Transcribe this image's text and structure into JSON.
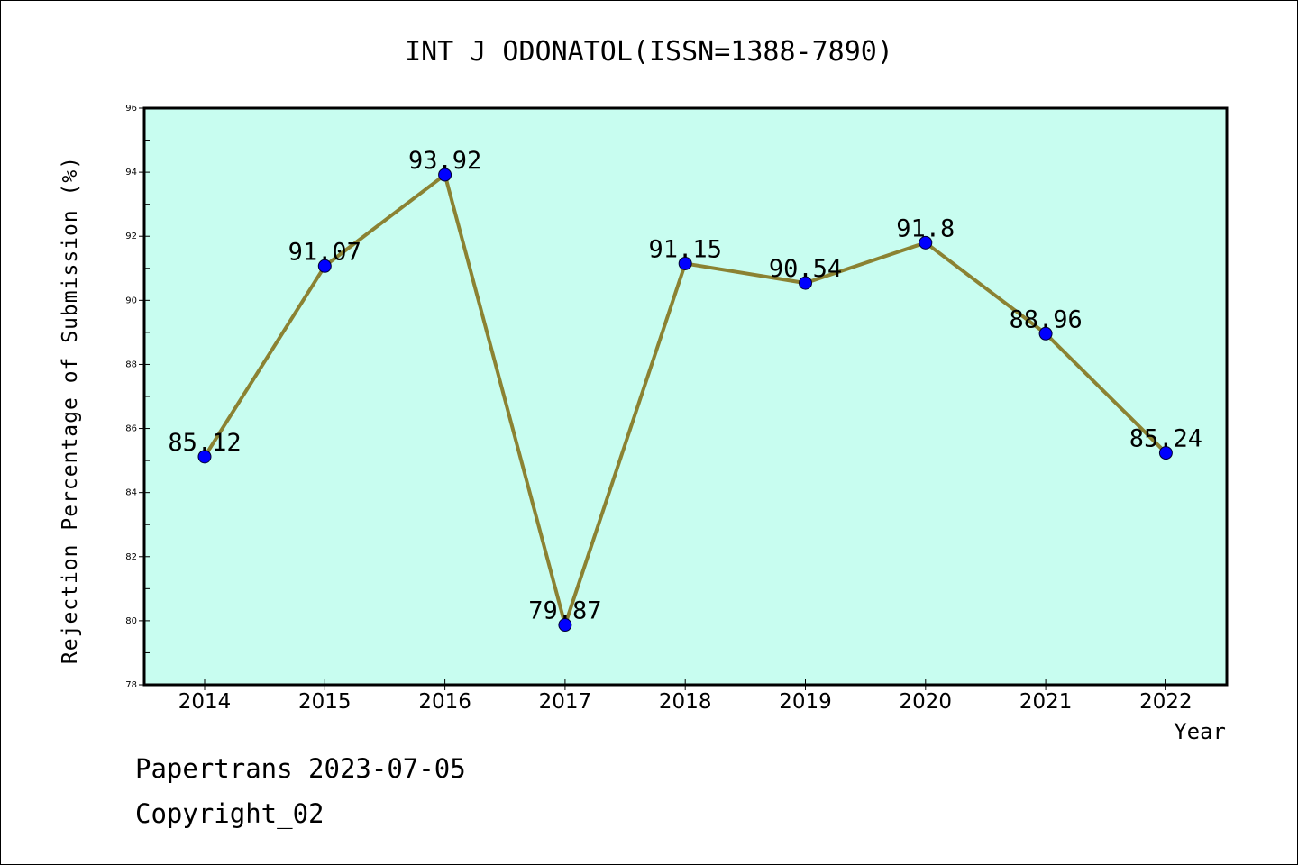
{
  "chart_data": {
    "type": "line",
    "title": "INT J ODONATOL(ISSN=1388-7890)",
    "xlabel": "Year",
    "ylabel": "Rejection Percentage of Submission (%)",
    "categories": [
      "2014",
      "2015",
      "2016",
      "2017",
      "2018",
      "2019",
      "2020",
      "2021",
      "2022"
    ],
    "values": [
      85.12,
      91.07,
      93.92,
      79.87,
      91.15,
      90.54,
      91.8,
      88.96,
      85.24
    ],
    "data_labels": [
      "85.12",
      "91.07",
      "93.92",
      "79.87",
      "91.15",
      "90.54",
      "91.8",
      "88.96",
      "85.24"
    ],
    "ylim": [
      78,
      96
    ],
    "y_ticks": [
      "78",
      "80",
      "82",
      "84",
      "86",
      "88",
      "90",
      "92",
      "94",
      "96"
    ],
    "grid": false,
    "legend": "none",
    "colors": {
      "plot_background": "#c8fdf0",
      "line": "#8b8232",
      "marker": "#0000ff",
      "frame": "#000000"
    }
  },
  "footer": {
    "source": "Papertrans 2023-07-05",
    "copyright": "Copyright_02"
  }
}
